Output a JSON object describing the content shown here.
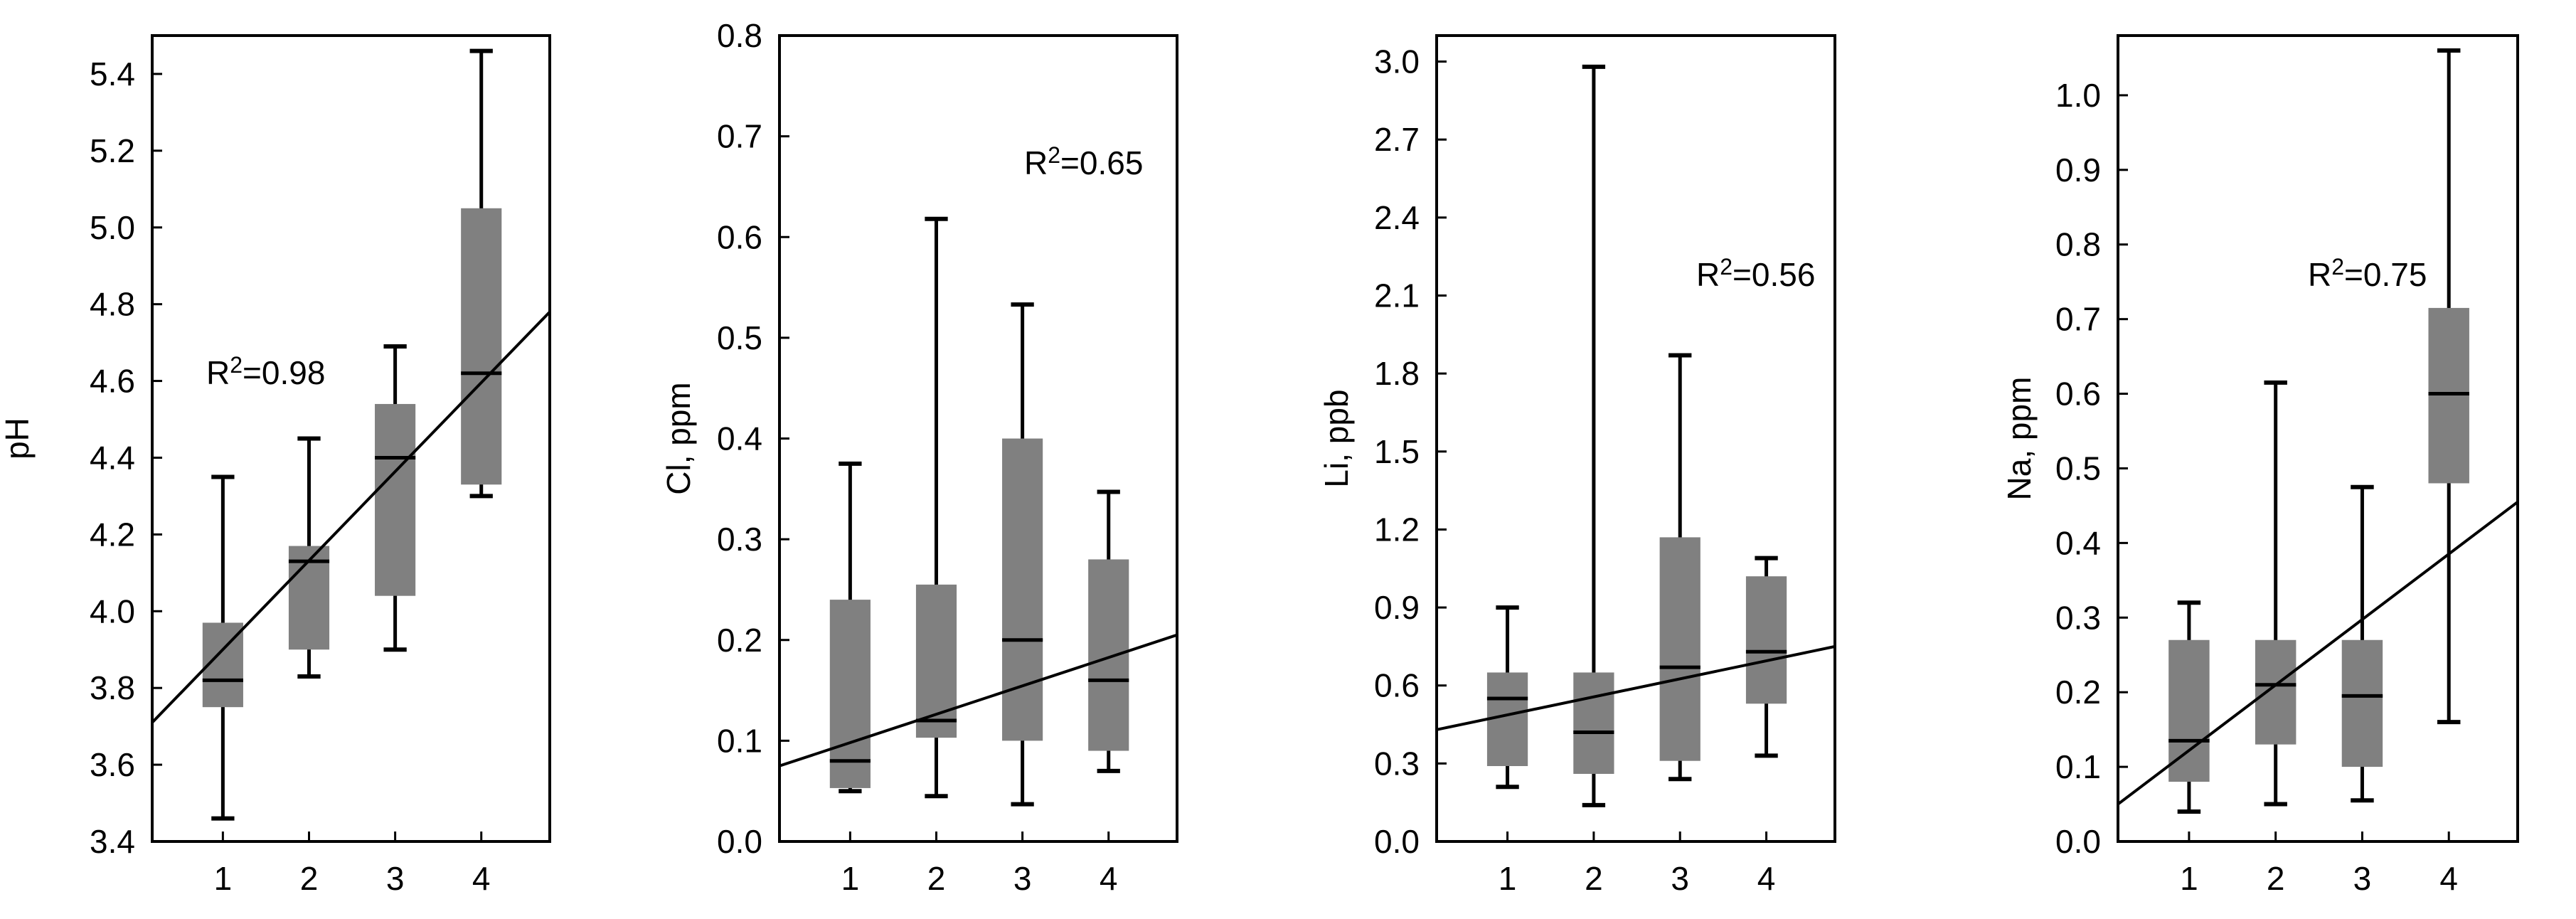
{
  "figure": {
    "box_fill": "#808080",
    "line_color": "#000000",
    "background": "#ffffff"
  },
  "chart_data": [
    {
      "type": "box",
      "ylabel": "pH",
      "xlabel": "",
      "categories": [
        "1",
        "2",
        "3",
        "4"
      ],
      "ylim": [
        3.4,
        5.5
      ],
      "yticks": [
        "3.4",
        "3.6",
        "3.8",
        "4.0",
        "4.2",
        "4.4",
        "4.6",
        "4.8",
        "5.0",
        "5.2",
        "5.4"
      ],
      "boxes": [
        {
          "min": 3.46,
          "q1": 3.75,
          "median": 3.82,
          "q3": 3.97,
          "max": 4.35
        },
        {
          "min": 3.83,
          "q1": 3.9,
          "median": 4.13,
          "q3": 4.17,
          "max": 4.45
        },
        {
          "min": 3.9,
          "q1": 4.04,
          "median": 4.4,
          "q3": 4.54,
          "max": 4.69
        },
        {
          "min": 4.3,
          "q1": 4.33,
          "median": 4.62,
          "q3": 5.05,
          "max": 5.46
        }
      ],
      "trend": {
        "start": 3.71,
        "end": 4.78
      },
      "r2_base": "R",
      "r2_sup": "2",
      "r2_value": "=0.98"
    },
    {
      "type": "box",
      "ylabel": "Cl, ppm",
      "xlabel": "",
      "categories": [
        "1",
        "2",
        "3",
        "4"
      ],
      "ylim": [
        0.0,
        0.8
      ],
      "yticks": [
        "0.0",
        "0.1",
        "0.2",
        "0.3",
        "0.4",
        "0.5",
        "0.6",
        "0.7",
        "0.8"
      ],
      "boxes": [
        {
          "min": 0.05,
          "q1": 0.053,
          "median": 0.08,
          "q3": 0.24,
          "max": 0.375
        },
        {
          "min": 0.045,
          "q1": 0.103,
          "median": 0.12,
          "q3": 0.255,
          "max": 0.618
        },
        {
          "min": 0.037,
          "q1": 0.1,
          "median": 0.2,
          "q3": 0.4,
          "max": 0.533
        },
        {
          "min": 0.07,
          "q1": 0.09,
          "median": 0.16,
          "q3": 0.28,
          "max": 0.347
        }
      ],
      "trend": {
        "start": 0.075,
        "end": 0.205
      },
      "r2_base": "R",
      "r2_sup": "2",
      "r2_value": "=0.65"
    },
    {
      "type": "box",
      "ylabel": "Li, ppb",
      "xlabel": "",
      "categories": [
        "1",
        "2",
        "3",
        "4"
      ],
      "ylim": [
        0.0,
        3.1
      ],
      "yticks": [
        "0.0",
        "0.3",
        "0.6",
        "0.9",
        "1.2",
        "1.5",
        "1.8",
        "2.1",
        "2.4",
        "2.7",
        "3.0"
      ],
      "boxes": [
        {
          "min": 0.21,
          "q1": 0.29,
          "median": 0.55,
          "q3": 0.65,
          "max": 0.9
        },
        {
          "min": 0.14,
          "q1": 0.26,
          "median": 0.42,
          "q3": 0.65,
          "max": 2.98
        },
        {
          "min": 0.24,
          "q1": 0.31,
          "median": 0.67,
          "q3": 1.17,
          "max": 1.87
        },
        {
          "min": 0.33,
          "q1": 0.53,
          "median": 0.73,
          "q3": 1.02,
          "max": 1.09
        }
      ],
      "trend": {
        "start": 0.43,
        "end": 0.75
      },
      "r2_base": "R",
      "r2_sup": "2",
      "r2_value": "=0.56"
    },
    {
      "type": "box",
      "ylabel": "Na, ppm",
      "xlabel": "",
      "categories": [
        "1",
        "2",
        "3",
        "4"
      ],
      "ylim": [
        0.0,
        1.08
      ],
      "yticks": [
        "0.0",
        "0.1",
        "0.2",
        "0.3",
        "0.4",
        "0.5",
        "0.6",
        "0.7",
        "0.8",
        "0.9",
        "1.0"
      ],
      "boxes": [
        {
          "min": 0.04,
          "q1": 0.08,
          "median": 0.135,
          "q3": 0.27,
          "max": 0.32
        },
        {
          "min": 0.05,
          "q1": 0.13,
          "median": 0.21,
          "q3": 0.27,
          "max": 0.615
        },
        {
          "min": 0.055,
          "q1": 0.1,
          "median": 0.195,
          "q3": 0.27,
          "max": 0.475
        },
        {
          "min": 0.16,
          "q1": 0.48,
          "median": 0.6,
          "q3": 0.715,
          "max": 1.06
        }
      ],
      "trend": {
        "start": 0.05,
        "end": 0.455
      },
      "r2_base": "R",
      "r2_sup": "2",
      "r2_value": "=0.75"
    }
  ]
}
